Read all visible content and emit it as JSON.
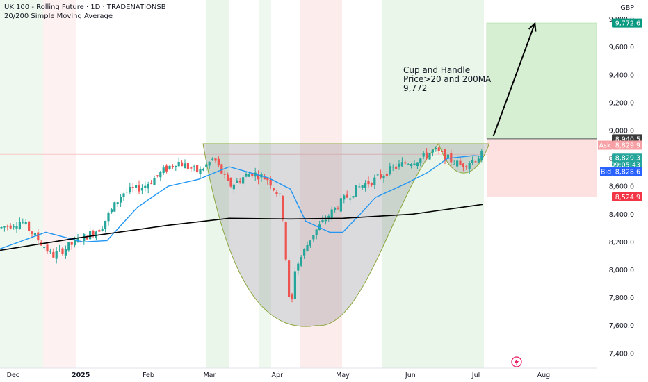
{
  "header": {
    "title": "UK 100 - Rolling Future · 1D · TRADENATIONSB",
    "indicator": "20/200 Simple Moving Average"
  },
  "currency": "GBP",
  "annotation": {
    "line1": "Cup and Handle",
    "line2": "Price>20 and 200MA",
    "line3": "9,772"
  },
  "price_tags": {
    "target": "9,772.6",
    "resistance": "8,940.5",
    "ask_label": "Ask",
    "ask": "8,829.9",
    "last": "8,829.3",
    "countdown": "09:05:43",
    "bid_label": "Bid",
    "bid": "8,828.6",
    "stop": "8,524.9"
  },
  "colors": {
    "up": "#26a69a",
    "down": "#ef5350",
    "ma20": "#2196f3",
    "ma200": "#000000",
    "target": "#089981",
    "ask": "#f23645",
    "bid": "#2962ff",
    "zone_green": "#d6efd3",
    "zone_red": "#fde0e0"
  },
  "chart_data": {
    "type": "candlestick",
    "title": "UK 100 - Rolling Future · 1D · TRADENATIONSB",
    "ylabel": "GBP",
    "ylim": [
      7350,
      9950
    ],
    "x_ticks": [
      "Dec",
      "2025",
      "Feb",
      "Mar",
      "Apr",
      "May",
      "Jun",
      "Jul",
      "Aug"
    ],
    "y_ticks": [
      "7,400.0",
      "7,600.0",
      "7,800.0",
      "8,000.0",
      "8,200.0",
      "8,400.0",
      "8,600.0",
      "8,800.0",
      "9,000.0",
      "9,200.0",
      "9,400.0",
      "9,600.0",
      "9,800.0"
    ],
    "close_path": [
      {
        "date": "2024-11-25",
        "close": 8300
      },
      {
        "date": "2024-12-05",
        "close": 8350
      },
      {
        "date": "2024-12-19",
        "close": 8100
      },
      {
        "date": "2025-01-02",
        "close": 8230
      },
      {
        "date": "2025-01-10",
        "close": 8300
      },
      {
        "date": "2025-01-20",
        "close": 8550
      },
      {
        "date": "2025-01-30",
        "close": 8600
      },
      {
        "date": "2025-02-07",
        "close": 8700
      },
      {
        "date": "2025-02-14",
        "close": 8780
      },
      {
        "date": "2025-02-24",
        "close": 8700
      },
      {
        "date": "2025-03-03",
        "close": 8800
      },
      {
        "date": "2025-03-10",
        "close": 8600
      },
      {
        "date": "2025-03-20",
        "close": 8700
      },
      {
        "date": "2025-03-28",
        "close": 8650
      },
      {
        "date": "2025-04-03",
        "close": 8500
      },
      {
        "date": "2025-04-07",
        "close": 7650
      },
      {
        "date": "2025-04-09",
        "close": 8000
      },
      {
        "date": "2025-04-17",
        "close": 8250
      },
      {
        "date": "2025-04-25",
        "close": 8400
      },
      {
        "date": "2025-05-01",
        "close": 8500
      },
      {
        "date": "2025-05-09",
        "close": 8600
      },
      {
        "date": "2025-05-16",
        "close": 8650
      },
      {
        "date": "2025-05-23",
        "close": 8720
      },
      {
        "date": "2025-05-30",
        "close": 8770
      },
      {
        "date": "2025-06-06",
        "close": 8800
      },
      {
        "date": "2025-06-12",
        "close": 8860
      },
      {
        "date": "2025-06-18",
        "close": 8800
      },
      {
        "date": "2025-06-24",
        "close": 8750
      },
      {
        "date": "2025-06-30",
        "close": 8790
      },
      {
        "date": "2025-07-04",
        "close": 8829.3
      }
    ],
    "ma20": [
      {
        "date": "2024-11-25",
        "value": 8150
      },
      {
        "date": "2024-12-16",
        "value": 8270
      },
      {
        "date": "2025-01-02",
        "value": 8200
      },
      {
        "date": "2025-01-13",
        "value": 8210
      },
      {
        "date": "2025-01-27",
        "value": 8450
      },
      {
        "date": "2025-02-10",
        "value": 8600
      },
      {
        "date": "2025-02-24",
        "value": 8650
      },
      {
        "date": "2025-03-10",
        "value": 8740
      },
      {
        "date": "2025-03-28",
        "value": 8660
      },
      {
        "date": "2025-04-07",
        "value": 8580
      },
      {
        "date": "2025-04-14",
        "value": 8350
      },
      {
        "date": "2025-04-25",
        "value": 8270
      },
      {
        "date": "2025-05-01",
        "value": 8270
      },
      {
        "date": "2025-05-09",
        "value": 8400
      },
      {
        "date": "2025-05-16",
        "value": 8520
      },
      {
        "date": "2025-05-30",
        "value": 8620
      },
      {
        "date": "2025-06-09",
        "value": 8700
      },
      {
        "date": "2025-06-18",
        "value": 8800
      },
      {
        "date": "2025-06-30",
        "value": 8820
      },
      {
        "date": "2025-07-04",
        "value": 8815
      }
    ],
    "ma200": [
      {
        "date": "2024-11-25",
        "value": 8140
      },
      {
        "date": "2024-12-31",
        "value": 8230
      },
      {
        "date": "2025-02-10",
        "value": 8320
      },
      {
        "date": "2025-03-10",
        "value": 8370
      },
      {
        "date": "2025-04-07",
        "value": 8365
      },
      {
        "date": "2025-05-01",
        "value": 8370
      },
      {
        "date": "2025-06-02",
        "value": 8400
      },
      {
        "date": "2025-07-04",
        "value": 8470
      }
    ],
    "annotations": {
      "cup_rim": 8905,
      "cup_bottom": 7600,
      "handle_bottom": 8660,
      "resistance": 8940.5,
      "target": 9772.6,
      "stop": 8524.9
    }
  }
}
